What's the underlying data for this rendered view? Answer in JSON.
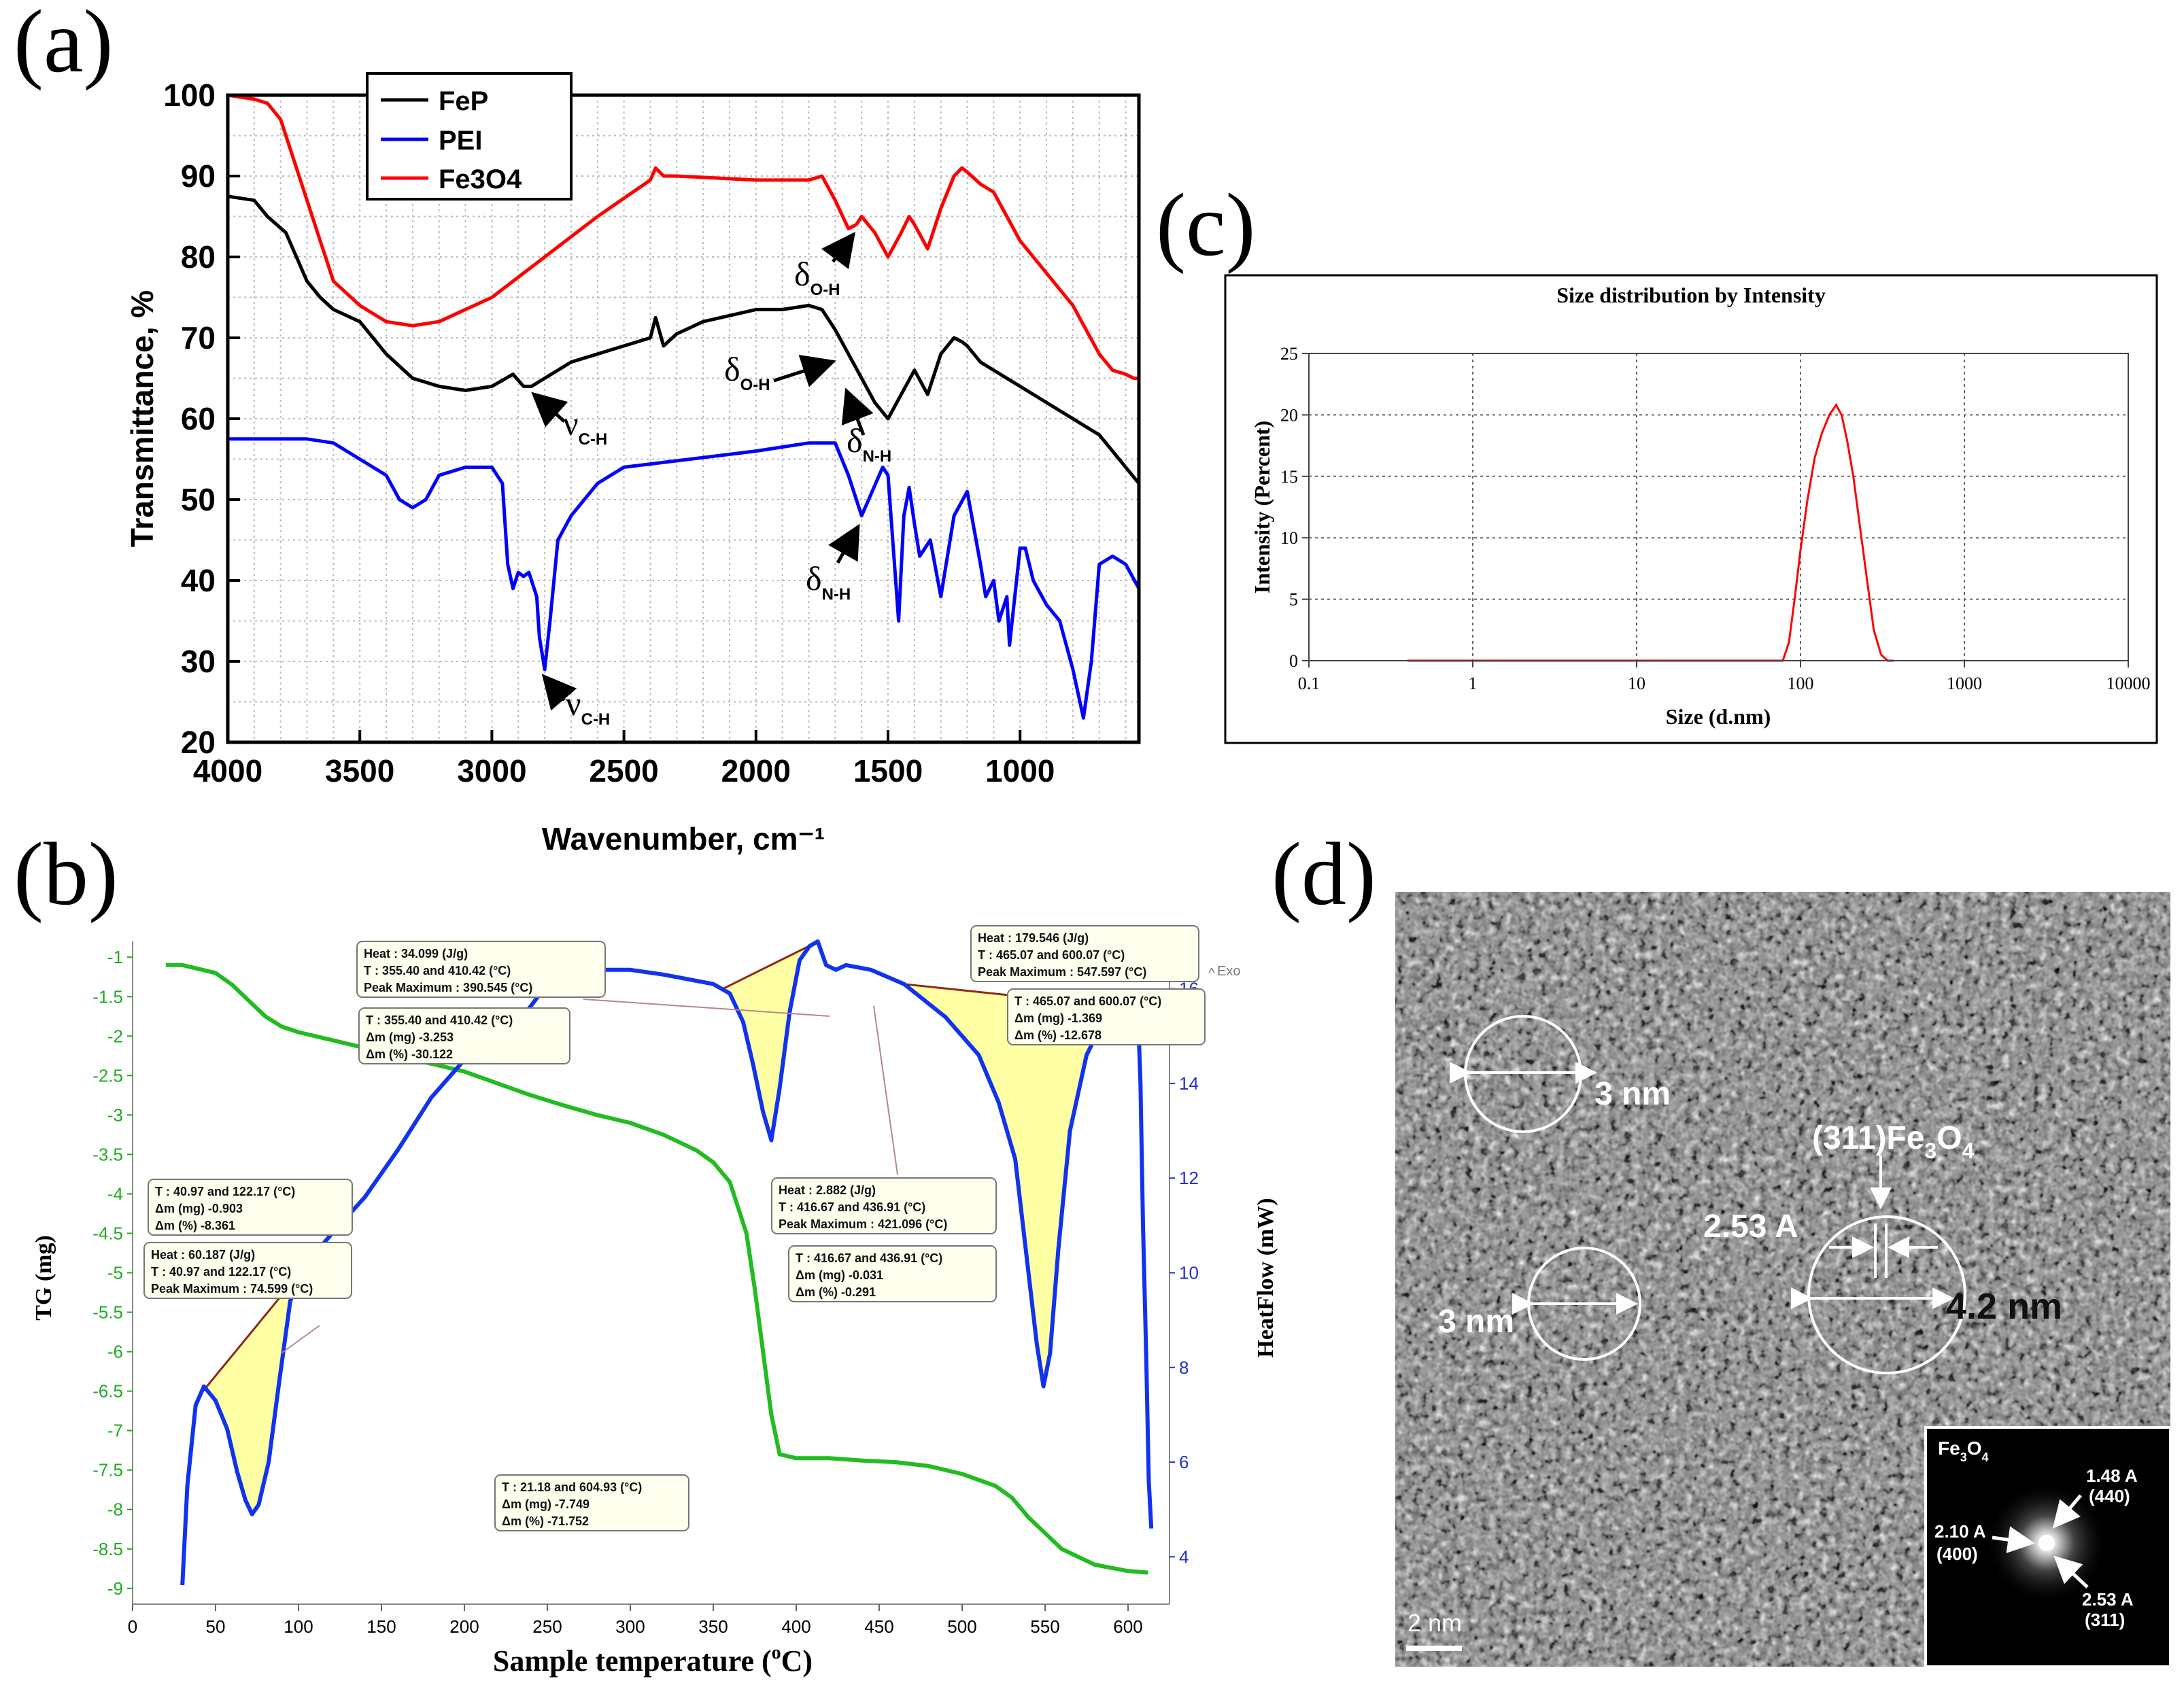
{
  "panel_labels": {
    "a": "(a)",
    "b": "(b)",
    "c": "(c)",
    "d": "(d)"
  },
  "chart_data": [
    {
      "id": "a",
      "type": "line",
      "title": "",
      "xlabel": "Wavenumber, cm⁻¹",
      "ylabel": "Transmittance, %",
      "xlim": [
        4000,
        550
      ],
      "ylim": [
        20,
        100
      ],
      "x_ticks": [
        "4000",
        "3500",
        "3000",
        "2500",
        "2000",
        "1500",
        "1000"
      ],
      "y_ticks": [
        "20",
        "30",
        "40",
        "50",
        "60",
        "70",
        "80",
        "90",
        "100"
      ],
      "grid": true,
      "legend": "top-left",
      "series": [
        {
          "name": "FeP",
          "color": "#000000",
          "x": [
            4000,
            3900,
            3850,
            3780,
            3700,
            3650,
            3600,
            3500,
            3400,
            3300,
            3200,
            3100,
            3000,
            2920,
            2880,
            2850,
            2800,
            2700,
            2500,
            2400,
            2380,
            2350,
            2300,
            2200,
            2000,
            1900,
            1800,
            1750,
            1700,
            1650,
            1600,
            1550,
            1500,
            1450,
            1400,
            1350,
            1300,
            1250,
            1220,
            1200,
            1150,
            1100,
            1050,
            1000,
            900,
            800,
            700,
            600,
            550
          ],
          "y": [
            87.5,
            87,
            85,
            83,
            77,
            75,
            73.5,
            72,
            68,
            65,
            64,
            63.5,
            64,
            65.5,
            64,
            64,
            65,
            67,
            69,
            70,
            72.5,
            69,
            70.5,
            72,
            73.5,
            73.5,
            74,
            73.5,
            71,
            68,
            65,
            62,
            60,
            63,
            66,
            63,
            68,
            70,
            69.5,
            69,
            67,
            66,
            65,
            64,
            62,
            60,
            58,
            54,
            52
          ]
        },
        {
          "name": "PEI",
          "color": "#0000ff",
          "x": [
            4000,
            3800,
            3700,
            3600,
            3500,
            3400,
            3350,
            3300,
            3250,
            3200,
            3100,
            3000,
            2960,
            2940,
            2920,
            2900,
            2880,
            2860,
            2830,
            2820,
            2800,
            2780,
            2750,
            2700,
            2600,
            2500,
            2000,
            1800,
            1700,
            1650,
            1600,
            1560,
            1520,
            1500,
            1480,
            1460,
            1440,
            1420,
            1400,
            1380,
            1340,
            1300,
            1250,
            1200,
            1150,
            1130,
            1100,
            1080,
            1050,
            1040,
            1000,
            980,
            950,
            900,
            850,
            800,
            760,
            730,
            700,
            650,
            600,
            550
          ],
          "y": [
            57.5,
            57.5,
            57.5,
            57,
            55,
            53,
            50,
            49,
            50,
            53,
            54,
            54,
            52,
            42,
            39,
            41,
            40.5,
            41,
            38,
            33,
            29,
            35,
            45,
            48,
            52,
            54,
            56,
            57,
            57,
            53,
            48,
            51,
            54,
            53,
            44,
            35,
            48,
            51.5,
            47,
            43,
            45,
            38,
            48,
            51,
            42,
            38,
            40,
            35,
            38,
            32,
            44,
            44,
            40,
            37,
            35,
            29,
            23,
            30,
            42,
            43,
            42,
            39
          ]
        },
        {
          "name": "Fe3O4",
          "color": "#ff0000",
          "x": [
            4000,
            3900,
            3850,
            3800,
            3750,
            3700,
            3650,
            3600,
            3500,
            3400,
            3300,
            3200,
            3000,
            2800,
            2600,
            2400,
            2380,
            2350,
            2300,
            2000,
            1800,
            1750,
            1700,
            1650,
            1620,
            1600,
            1550,
            1500,
            1450,
            1420,
            1400,
            1350,
            1300,
            1250,
            1220,
            1200,
            1150,
            1100,
            1050,
            1000,
            900,
            800,
            700,
            650,
            600,
            570,
            550
          ],
          "y": [
            100,
            99.5,
            99,
            97,
            92,
            87,
            82,
            77,
            74,
            72,
            71.5,
            72,
            75,
            80,
            85,
            89.5,
            91,
            90,
            90,
            89.5,
            89.5,
            90,
            87,
            83.5,
            84,
            85,
            83,
            80,
            83,
            85,
            84,
            81,
            86,
            90,
            91,
            90.5,
            89,
            88,
            85,
            82,
            78,
            74,
            68,
            66,
            65.5,
            65,
            65
          ]
        }
      ],
      "annotations": [
        {
          "symbol": "δ",
          "sub": "O-H",
          "curve": "Fe3O4"
        },
        {
          "symbol": "δ",
          "sub": "O-H",
          "curve": "FeP"
        },
        {
          "symbol": "ν",
          "sub": "C-H",
          "curve": "FeP"
        },
        {
          "symbol": "δ",
          "sub": "N-H",
          "curve": "FeP"
        },
        {
          "symbol": "δ",
          "sub": "N-H",
          "curve": "PEI"
        },
        {
          "symbol": "ν",
          "sub": "C-H",
          "curve": "PEI"
        }
      ]
    },
    {
      "id": "c",
      "type": "line",
      "title": "Size distribution by Intensity",
      "xlabel": "Size (d.nm)",
      "ylabel": "Intensity (Percent)",
      "x_scale": "log",
      "xlim": [
        0.1,
        10000
      ],
      "ylim": [
        0,
        25
      ],
      "x_ticks": [
        "0.1",
        "1",
        "10",
        "100",
        "1000",
        "10000"
      ],
      "y_ticks": [
        "0",
        "5",
        "10",
        "15",
        "20",
        "25"
      ],
      "grid": true,
      "series": [
        {
          "name": "Intensity",
          "color": "#ff0000",
          "x": [
            0.4,
            70,
            78,
            85,
            92,
            100,
            110,
            122,
            135,
            150,
            165,
            178,
            192,
            210,
            230,
            255,
            280,
            310,
            340,
            370
          ],
          "y": [
            0,
            0,
            0,
            1.5,
            5,
            9,
            13,
            16.5,
            18.5,
            20,
            20.8,
            20,
            18,
            15,
            11,
            6.5,
            2.5,
            0.5,
            0,
            0
          ]
        }
      ]
    },
    {
      "id": "b",
      "type": "line",
      "title": "",
      "xlabel": "Sample temperature (°C)",
      "xlabel_base": "Sample temperature (",
      "xlabel_sup": "o",
      "xlabel_tail": "C)",
      "ylabel": "TG (mg)",
      "y2label": "HeatFlow (mW)",
      "xlim": [
        0,
        625
      ],
      "ylim": [
        -9.2,
        -0.8
      ],
      "y2lim": [
        3,
        17
      ],
      "x_ticks": [
        "0",
        "50",
        "100",
        "150",
        "200",
        "250",
        "300",
        "350",
        "400",
        "450",
        "500",
        "550",
        "600"
      ],
      "y_ticks": [
        "-1",
        "-1.5",
        "-2",
        "-2.5",
        "-3",
        "-3.5",
        "-4",
        "-4.5",
        "-5",
        "-5.5",
        "-6",
        "-6.5",
        "-7",
        "-7.5",
        "-8",
        "-8.5",
        "-9"
      ],
      "y2_ticks": [
        "4",
        "6",
        "8",
        "10",
        "12",
        "14",
        "16"
      ],
      "exo_label": "Exo",
      "series": [
        {
          "name": "TG",
          "color": "#22bb22",
          "axis": "left",
          "x": [
            20,
            30,
            40,
            50,
            60,
            70,
            80,
            90,
            100,
            110,
            120,
            140,
            160,
            180,
            200,
            220,
            240,
            260,
            280,
            300,
            320,
            340,
            350,
            360,
            370,
            375,
            380,
            385,
            390,
            400,
            420,
            440,
            460,
            480,
            500,
            520,
            530,
            540,
            550,
            560,
            570,
            580,
            600,
            612
          ],
          "y": [
            -1.1,
            -1.1,
            -1.15,
            -1.2,
            -1.35,
            -1.55,
            -1.75,
            -1.88,
            -1.95,
            -2,
            -2.05,
            -2.15,
            -2.25,
            -2.35,
            -2.45,
            -2.6,
            -2.75,
            -2.88,
            -3,
            -3.1,
            -3.25,
            -3.45,
            -3.6,
            -3.85,
            -4.5,
            -5.2,
            -6,
            -6.8,
            -7.3,
            -7.35,
            -7.35,
            -7.38,
            -7.4,
            -7.45,
            -7.55,
            -7.7,
            -7.85,
            -8.1,
            -8.3,
            -8.5,
            -8.6,
            -8.7,
            -8.78,
            -8.8
          ]
        },
        {
          "name": "HeatFlow",
          "color": "#1133ee",
          "axis": "right",
          "x": [
            30,
            33,
            38,
            43,
            50,
            57,
            63,
            68,
            72,
            76,
            82,
            88,
            95,
            104,
            112,
            122,
            140,
            160,
            180,
            200,
            215,
            235,
            250,
            262,
            272,
            285,
            300,
            320,
            335,
            350,
            360,
            368,
            374,
            380,
            385,
            390,
            396,
            402,
            408,
            413,
            418,
            424,
            430,
            445,
            465,
            490,
            510,
            522,
            532,
            540,
            545,
            549,
            553,
            558,
            565,
            575,
            585,
            593,
            598,
            603,
            606,
            607.5,
            609,
            611,
            612.5,
            614
          ],
          "y": [
            3.4,
            5.5,
            7.2,
            7.6,
            7.3,
            6.7,
            5.8,
            5.2,
            4.9,
            5.1,
            6,
            7.6,
            9.4,
            10.2,
            10.5,
            10.9,
            11.6,
            12.6,
            13.7,
            14.5,
            14.8,
            15.4,
            16.1,
            16.4,
            16.4,
            16.4,
            16.4,
            16.3,
            16.2,
            16.1,
            15.9,
            15.3,
            14.4,
            13.4,
            12.8,
            13.9,
            15.5,
            16.6,
            16.9,
            17,
            16.5,
            16.4,
            16.5,
            16.4,
            16.1,
            15.4,
            14.6,
            13.6,
            12.4,
            10,
            8.5,
            7.6,
            8.3,
            10.5,
            13,
            14.6,
            15.3,
            15.5,
            15.6,
            15.6,
            15.5,
            14,
            11,
            8.2,
            5.6,
            4.6
          ]
        }
      ],
      "annotations": [
        {
          "lines": [
            "Heat :  34.099  (J/g)",
            "T : 355.40 and 410.42 (°C)",
            "Peak Maximum :  390.545 (°C)"
          ]
        },
        {
          "lines": [
            "T : 355.40 and 410.42 (°C)",
            "Δm (mg) -3.253",
            "Δm (%) -30.122"
          ]
        },
        {
          "lines": [
            "Heat : 179.546  (J/g)",
            "T : 465.07 and 600.07 (°C)",
            "Peak Maximum :  547.597 (°C)"
          ]
        },
        {
          "lines": [
            "T : 465.07 and 600.07 (°C)",
            "Δm (mg) -1.369",
            "Δm (%) -12.678"
          ]
        },
        {
          "lines": [
            "T : 40.97 and 122.17 (°C)",
            "Δm (mg) -0.903",
            "Δm (%) -8.361"
          ]
        },
        {
          "lines": [
            "Heat :  60.187  (J/g)",
            "T : 40.97 and 122.17 (°C)",
            "Peak Maximum :  74.599 (°C)"
          ]
        },
        {
          "lines": [
            "Heat :  2.882  (J/g)",
            "T : 416.67 and 436.91 (°C)",
            "Peak Maximum :  421.096 (°C)"
          ]
        },
        {
          "lines": [
            "T : 416.67 and 436.91 (°C)",
            "Δm (mg) -0.031",
            "Δm (%) -0.291"
          ]
        },
        {
          "lines": [
            "T : 21.18 and 604.93 (°C)",
            "Δm (mg) -7.749",
            "Δm (%) -71.752"
          ]
        }
      ]
    }
  ],
  "tem": {
    "labels": {
      "d1": "3 nm",
      "d2": "3 nm",
      "d3": "4.2 nm",
      "spacing": "2.53 A",
      "plane": "(311)Fe",
      "plane_sub1": "3",
      "plane_mid": "O",
      "plane_sub2": "4",
      "scale": "2 nm"
    },
    "inset": {
      "title": "Fe",
      "title_sub1": "3",
      "title_mid": "O",
      "title_sub2": "4",
      "spots": [
        {
          "d": "1.48 A",
          "hkl": "(440)"
        },
        {
          "d": "2.10 A",
          "hkl": "(400)"
        },
        {
          "d": "2.53 A",
          "hkl": "(311)"
        }
      ]
    }
  }
}
